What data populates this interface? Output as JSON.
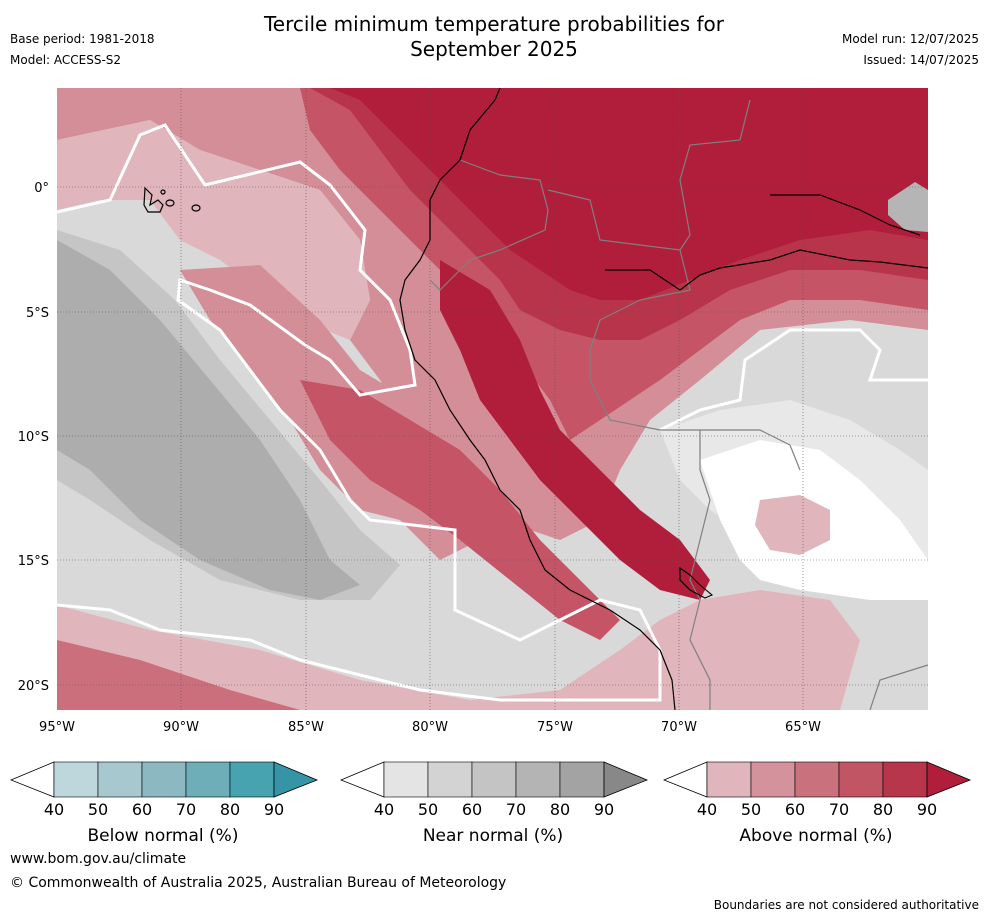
{
  "title_line1": "Tercile minimum temperature probabilities for",
  "title_line2": "September 2025",
  "meta": {
    "base_period": "Base period: 1981-2018",
    "model": "Model: ACCESS-S2",
    "model_run": "Model run: 12/07/2025",
    "issued": "Issued: 14/07/2025"
  },
  "map": {
    "lon_ticks": [
      "95°W",
      "90°W",
      "85°W",
      "80°W",
      "75°W",
      "70°W",
      "65°W"
    ],
    "lat_ticks": [
      "0°",
      "5°S",
      "10°S",
      "15°S",
      "20°S"
    ],
    "colors": {
      "near_base": "#d9d9d9",
      "near_60": "#c6c6c6",
      "near_70": "#b5b5b5",
      "near_80": "#a4a4a4",
      "above_40": "#e0b5bc",
      "above_50": "#d48e98",
      "above_60": "#cb6f7c",
      "above_70": "#c45466",
      "above_80": "#b8344a",
      "above_90": "#b01e3b",
      "near_40": "#e8e8e8",
      "coast": "#000000",
      "border": "#808080"
    }
  },
  "colorbars": [
    {
      "name": "below",
      "label": "Below normal (%)",
      "ticks": [
        "40",
        "50",
        "60",
        "70",
        "80",
        "90"
      ],
      "colors": [
        "#bdd7dc",
        "#a7c8ce",
        "#8cb8c1",
        "#6daeb9",
        "#48a3b1"
      ],
      "max_color": "#3595a6"
    },
    {
      "name": "near",
      "label": "Near normal (%)",
      "ticks": [
        "40",
        "50",
        "60",
        "70",
        "80",
        "90"
      ],
      "colors": [
        "#e4e4e4",
        "#d3d3d3",
        "#c4c4c4",
        "#b4b4b4",
        "#a3a3a3"
      ],
      "max_color": "#888888"
    },
    {
      "name": "above",
      "label": "Above normal (%)",
      "ticks": [
        "40",
        "50",
        "60",
        "70",
        "80",
        "90"
      ],
      "colors": [
        "#e0b5bc",
        "#d4939c",
        "#c9727e",
        "#c15564",
        "#b8364b"
      ],
      "max_color": "#b01e3b"
    }
  ],
  "footer": {
    "website": "www.bom.gov.au/climate",
    "copyright": "© Commonwealth of Australia 2025, Australian Bureau of Meteorology",
    "disclaimer": "Boundaries are not considered authoritative"
  }
}
